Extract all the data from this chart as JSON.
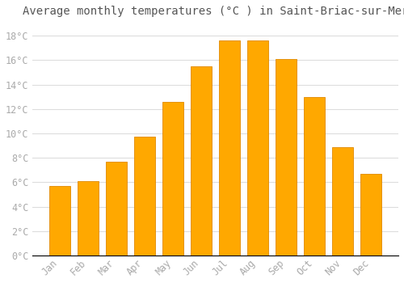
{
  "title": "Average monthly temperatures (°C ) in Saint-Briac-sur-Mer",
  "months": [
    "Jan",
    "Feb",
    "Mar",
    "Apr",
    "May",
    "Jun",
    "Jul",
    "Aug",
    "Sep",
    "Oct",
    "Nov",
    "Dec"
  ],
  "values": [
    5.7,
    6.1,
    7.7,
    9.7,
    12.6,
    15.5,
    17.6,
    17.6,
    16.1,
    13.0,
    8.9,
    6.7
  ],
  "bar_color": "#FFA800",
  "bar_edge_color": "#E08800",
  "background_color": "#FFFFFF",
  "grid_color": "#DDDDDD",
  "text_color": "#AAAAAA",
  "ylim": [
    0,
    19
  ],
  "yticks": [
    0,
    2,
    4,
    6,
    8,
    10,
    12,
    14,
    16,
    18
  ],
  "title_fontsize": 10,
  "tick_fontsize": 8.5
}
